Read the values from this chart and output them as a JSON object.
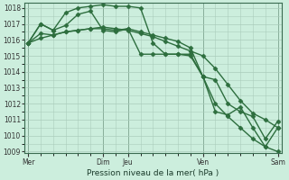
{
  "background_color": "#cceedd",
  "grid_color": "#aaccbb",
  "line_color": "#2d6e3e",
  "ylabel_min": 1009,
  "ylabel_max": 1018,
  "yticks": [
    1009,
    1010,
    1011,
    1012,
    1013,
    1014,
    1015,
    1016,
    1017,
    1018
  ],
  "xlabel": "Pression niveau de la mer( hPa )",
  "xtick_labels": [
    "Mer",
    "Dim",
    "Jeu",
    "Ven",
    "Sam"
  ],
  "xtick_positions": [
    0,
    6,
    8,
    14,
    20
  ],
  "vlines": [
    0,
    6,
    8,
    14,
    20
  ],
  "series1_x": [
    0,
    1,
    2,
    3,
    4,
    5,
    6,
    7,
    8,
    9,
    10,
    11,
    12,
    13,
    14,
    15,
    16,
    17,
    18,
    19,
    20
  ],
  "series1_y": [
    1015.8,
    1016.1,
    1016.3,
    1016.5,
    1016.6,
    1016.7,
    1016.8,
    1016.7,
    1016.6,
    1016.4,
    1016.2,
    1015.9,
    1015.6,
    1015.3,
    1015.0,
    1014.2,
    1013.2,
    1012.2,
    1011.4,
    1011.0,
    1010.5
  ],
  "series2_x": [
    0,
    1,
    2,
    3,
    4,
    5,
    6,
    7,
    8,
    9,
    10,
    11,
    12,
    13,
    14,
    15,
    16,
    17,
    18,
    19,
    20
  ],
  "series2_y": [
    1015.8,
    1017.0,
    1016.6,
    1016.9,
    1017.6,
    1017.8,
    1016.6,
    1016.5,
    1016.7,
    1015.1,
    1015.1,
    1015.1,
    1015.1,
    1015.1,
    1013.7,
    1011.5,
    1011.3,
    1011.8,
    1010.5,
    1009.3,
    1010.5
  ],
  "series3_x": [
    0,
    1,
    2,
    3,
    4,
    5,
    6,
    7,
    8,
    9,
    10,
    11,
    12,
    13,
    14,
    15,
    16,
    17,
    18,
    19,
    20
  ],
  "series3_y": [
    1015.8,
    1017.0,
    1016.6,
    1017.7,
    1018.0,
    1018.1,
    1018.2,
    1018.1,
    1018.1,
    1018.0,
    1015.8,
    1015.1,
    1015.1,
    1015.0,
    1013.7,
    1012.0,
    1011.2,
    1010.5,
    1009.8,
    1009.3,
    1009.0
  ],
  "series4_x": [
    0,
    1,
    2,
    3,
    4,
    5,
    6,
    7,
    8,
    9,
    10,
    11,
    12,
    13,
    14,
    15,
    16,
    17,
    18,
    19,
    20
  ],
  "series4_y": [
    1015.8,
    1016.4,
    1016.3,
    1016.5,
    1016.6,
    1016.7,
    1016.7,
    1016.6,
    1016.7,
    1016.5,
    1016.3,
    1016.1,
    1015.9,
    1015.5,
    1013.7,
    1013.5,
    1012.0,
    1011.5,
    1011.2,
    1009.8,
    1010.9
  ]
}
